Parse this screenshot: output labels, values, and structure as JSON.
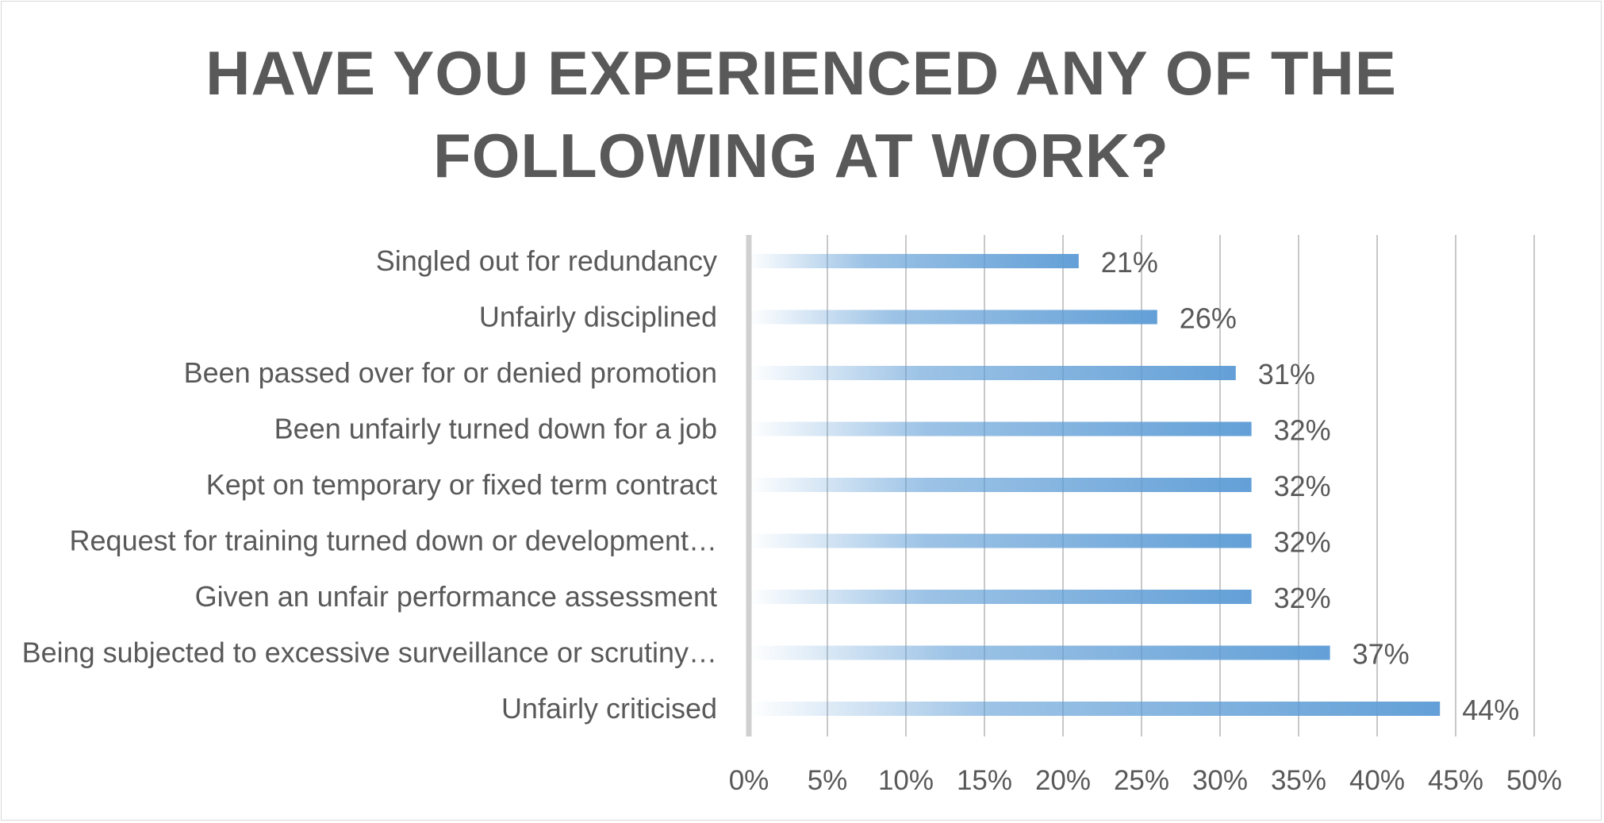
{
  "title_lines": [
    "HAVE YOU EXPERIENCED ANY OF THE",
    "FOLLOWING AT WORK?"
  ],
  "chart_data": {
    "type": "bar",
    "orientation": "horizontal",
    "title": "HAVE YOU EXPERIENCED ANY OF THE FOLLOWING AT WORK?",
    "categories": [
      "Singled out for redundancy",
      "Unfairly disciplined",
      "Been passed over for or denied promotion",
      "Been unfairly turned down for a job",
      "Kept on temporary or fixed term contract",
      "Request for training turned down or development…",
      "Given an unfair performance assessment",
      "Being subjected to excessive surveillance or scrutiny…",
      "Unfairly criticised"
    ],
    "values": [
      21,
      26,
      31,
      32,
      32,
      32,
      32,
      37,
      44
    ],
    "value_labels": [
      "21%",
      "26%",
      "31%",
      "32%",
      "32%",
      "32%",
      "32%",
      "37%",
      "44%"
    ],
    "x_ticks": [
      "0%",
      "5%",
      "10%",
      "15%",
      "20%",
      "25%",
      "30%",
      "35%",
      "40%",
      "45%",
      "50%"
    ],
    "xlim": [
      0,
      50
    ],
    "grid": "vertical",
    "legend": "none",
    "bar_color": "#5b9bd5"
  }
}
